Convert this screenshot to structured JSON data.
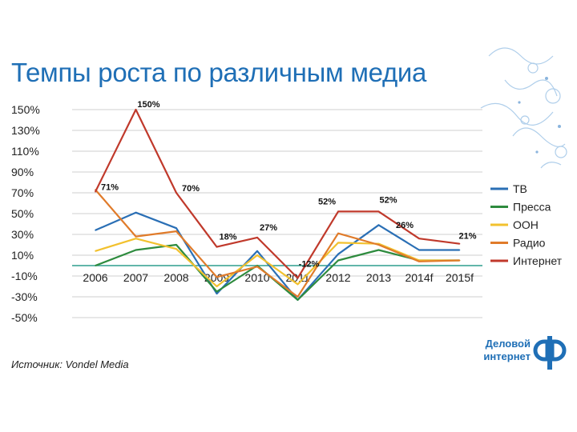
{
  "slide": {
    "title": "Темпы роста по различным медиа",
    "source": "Источник: Vondel Media"
  },
  "logo": {
    "line1": "Деловой",
    "line2": "интернет",
    "mark_icon": "di-logo-icon"
  },
  "colors": {
    "tv": "#2a6fb5",
    "press": "#2e8b3e",
    "ooh": "#f2c12e",
    "radio": "#e07b2a",
    "internet": "#c0392b",
    "axis": "#2e9e8e",
    "grid": "#cfcfcf"
  },
  "chart_data": {
    "type": "line",
    "title": "Темпы роста по различным медиа",
    "xlabel": "",
    "ylabel": "",
    "ylim": [
      -50,
      150
    ],
    "yticks": [
      "150%",
      "130%",
      "110%",
      "90%",
      "70%",
      "50%",
      "30%",
      "10%",
      "-10%",
      "-30%",
      "-50%"
    ],
    "ytick_values": [
      150,
      130,
      110,
      90,
      70,
      50,
      30,
      10,
      -10,
      -30,
      -50
    ],
    "categories": [
      "2006",
      "2007",
      "2008",
      "2009",
      "2010",
      "2011",
      "2012",
      "2013",
      "2014f",
      "2015f"
    ],
    "grid": true,
    "legend_position": "right",
    "series": [
      {
        "name": "ТВ",
        "key": "tv",
        "values": [
          34,
          51,
          36,
          -27,
          14,
          -33,
          11,
          39,
          15,
          15
        ]
      },
      {
        "name": "Пресса",
        "key": "press",
        "values": [
          0,
          15,
          20,
          -25,
          0,
          -33,
          5,
          15,
          5,
          5
        ]
      },
      {
        "name": "ООН",
        "key": "ooh",
        "values": [
          14,
          26,
          16,
          -20,
          10,
          -18,
          22,
          21,
          5,
          5
        ]
      },
      {
        "name": "Радио",
        "key": "radio",
        "values": [
          73,
          28,
          33,
          -11,
          -1,
          -30,
          31,
          20,
          4,
          5
        ]
      },
      {
        "name": "Интернет",
        "key": "internet",
        "values": [
          71,
          150,
          70,
          18,
          27,
          -12,
          52,
          52,
          26,
          21
        ]
      }
    ],
    "annotations": [
      {
        "series": "Интернет",
        "index": 0,
        "text": "71%"
      },
      {
        "series": "Интернет",
        "index": 1,
        "text": "150%"
      },
      {
        "series": "Интернет",
        "index": 2,
        "text": "70%"
      },
      {
        "series": "Интернет",
        "index": 3,
        "text": "18%"
      },
      {
        "series": "Интернет",
        "index": 4,
        "text": "27%"
      },
      {
        "series": "Интернет",
        "index": 5,
        "text": "-12%"
      },
      {
        "series": "Интернет",
        "index": 6,
        "text": "52%"
      },
      {
        "series": "Интернет",
        "index": 7,
        "text": "52%"
      },
      {
        "series": "Интернет",
        "index": 8,
        "text": "26%"
      },
      {
        "series": "Интернет",
        "index": 9,
        "text": "21%"
      }
    ]
  }
}
